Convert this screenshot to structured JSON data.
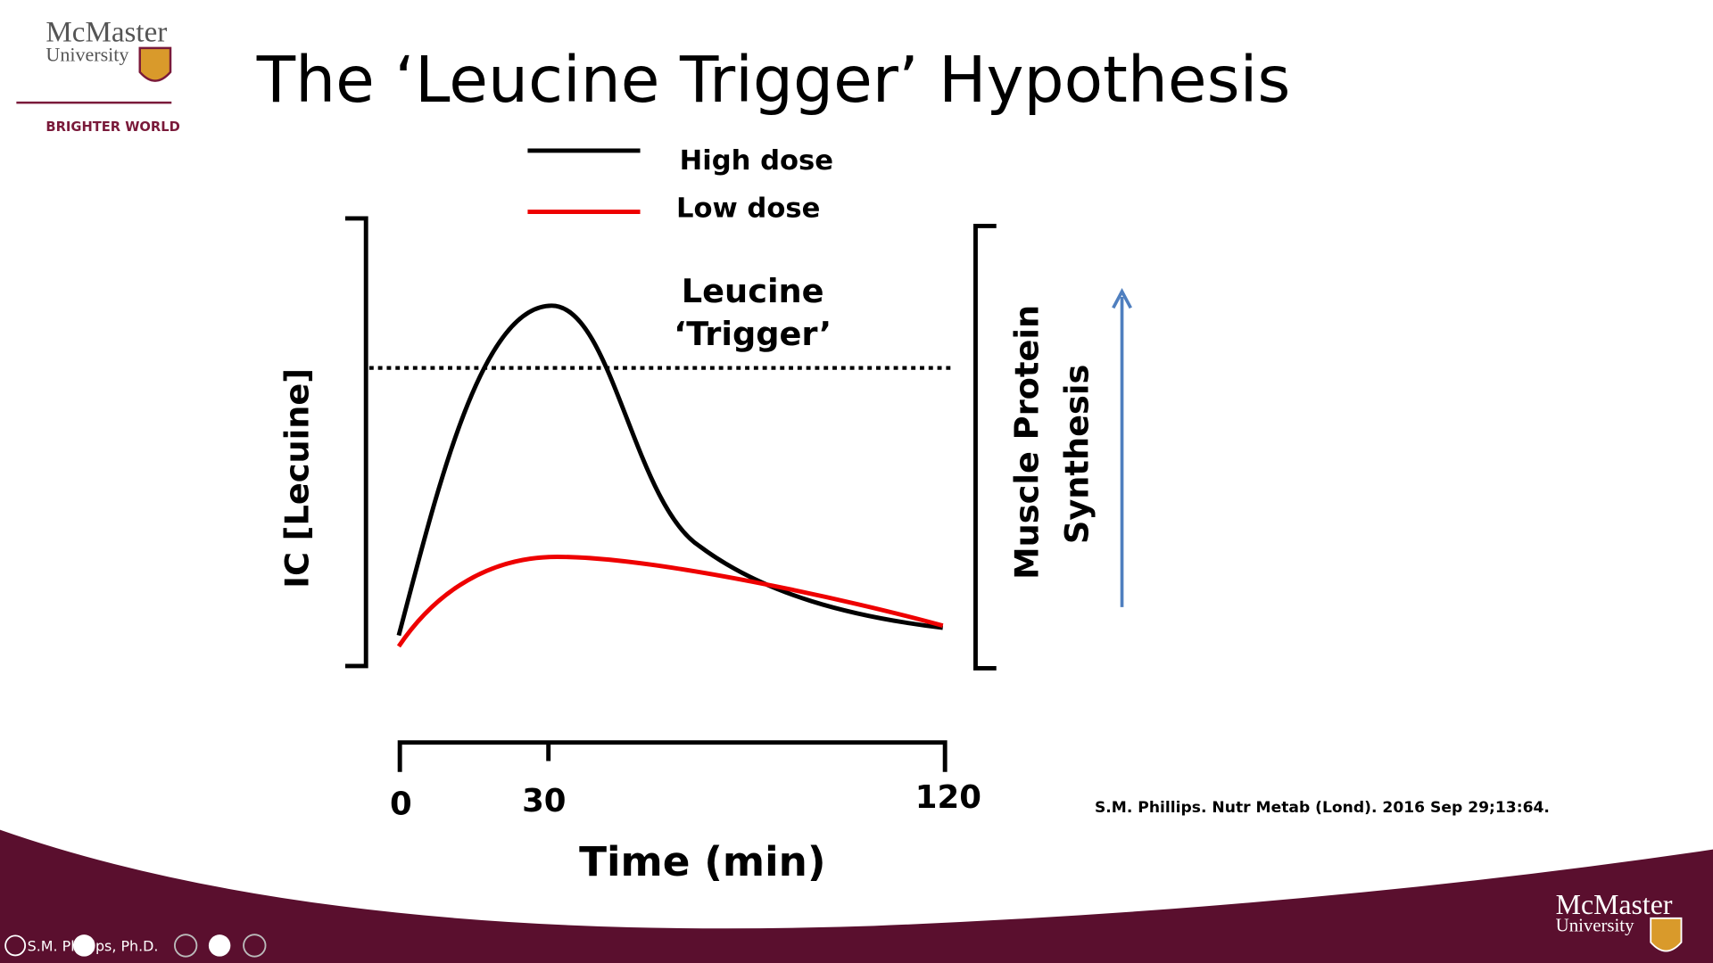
{
  "header": {
    "logo_name": "McMaster",
    "logo_sub": "University",
    "tagline": "BRIGHTER WORLD",
    "title": "The ‘Leucine Trigger’ Hypothesis"
  },
  "legend": [
    "High dose",
    "Low dose"
  ],
  "annotation": [
    "Leucine",
    "‘Trigger’"
  ],
  "y_axis_label": "IC [Lecuine]",
  "right_axis_label": [
    "Muscle Protein",
    "Synthesis"
  ],
  "x_ticks": [
    0,
    30,
    120
  ],
  "x_axis_label": "Time (min)",
  "citation": "S.M. Phillips. Nutr Metab (Lond). 2016 Sep 29;13:64.",
  "footer": {
    "logo_name": "McMaster",
    "logo_sub": "University",
    "presenter": "S.M. Phillips, Ph.D."
  }
}
